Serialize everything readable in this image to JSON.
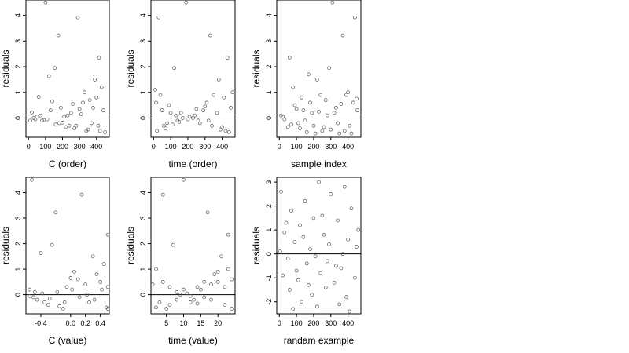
{
  "chart_data": [
    {
      "type": "scatter",
      "xlabel": "C (order)",
      "ylabel": "residuals",
      "xlim": [
        -15,
        475
      ],
      "ylim": [
        -0.75,
        4.6
      ],
      "xticks": [
        0,
        100,
        200,
        300,
        400
      ],
      "yticks": [
        0,
        1,
        2,
        3,
        4
      ],
      "hline": 0,
      "points": [
        [
          100,
          4.5
        ],
        [
          290,
          3.92
        ],
        [
          175,
          3.22
        ],
        [
          415,
          2.35
        ],
        [
          120,
          1.63
        ],
        [
          155,
          1.95
        ],
        [
          60,
          0.82
        ],
        [
          20,
          0.22
        ],
        [
          40,
          -0.05
        ],
        [
          80,
          -0.1
        ],
        [
          140,
          0.65
        ],
        [
          200,
          -0.18
        ],
        [
          240,
          -0.3
        ],
        [
          260,
          0.55
        ],
        [
          300,
          0.35
        ],
        [
          330,
          1.0
        ],
        [
          360,
          0.7
        ],
        [
          390,
          1.5
        ],
        [
          430,
          1.2
        ],
        [
          450,
          -0.55
        ],
        [
          10,
          -0.1
        ],
        [
          50,
          0.05
        ],
        [
          110,
          -0.05
        ],
        [
          180,
          -0.2
        ],
        [
          220,
          -0.35
        ],
        [
          270,
          -0.4
        ],
        [
          310,
          0.15
        ],
        [
          350,
          -0.45
        ],
        [
          380,
          0.4
        ],
        [
          420,
          -0.5
        ],
        [
          30,
          0.0
        ],
        [
          70,
          0.1
        ],
        [
          130,
          0.3
        ],
        [
          160,
          -0.25
        ],
        [
          210,
          0.05
        ],
        [
          250,
          0.2
        ],
        [
          280,
          -0.3
        ],
        [
          320,
          0.6
        ],
        [
          370,
          -0.2
        ],
        [
          400,
          0.8
        ],
        [
          440,
          0.3
        ],
        [
          90,
          -0.08
        ],
        [
          190,
          0.4
        ],
        [
          230,
          0.1
        ],
        [
          340,
          -0.5
        ],
        [
          410,
          -0.3
        ]
      ]
    },
    {
      "type": "scatter",
      "xlabel": "time (order)",
      "ylabel": "residuals",
      "xlim": [
        -15,
        475
      ],
      "ylim": [
        -0.75,
        4.6
      ],
      "xticks": [
        0,
        100,
        200,
        300,
        400
      ],
      "yticks": [
        0,
        1,
        2,
        3,
        4
      ],
      "hline": 0,
      "points": [
        [
          190,
          4.5
        ],
        [
          30,
          3.92
        ],
        [
          330,
          3.22
        ],
        [
          430,
          2.35
        ],
        [
          120,
          1.95
        ],
        [
          380,
          1.5
        ],
        [
          10,
          1.1
        ],
        [
          40,
          0.9
        ],
        [
          60,
          -0.3
        ],
        [
          80,
          -0.2
        ],
        [
          100,
          0.2
        ],
        [
          140,
          -0.1
        ],
        [
          170,
          0.0
        ],
        [
          210,
          0.05
        ],
        [
          240,
          0.1
        ],
        [
          260,
          -0.1
        ],
        [
          290,
          0.3
        ],
        [
          310,
          0.6
        ],
        [
          350,
          0.9
        ],
        [
          400,
          -0.35
        ],
        [
          420,
          -0.5
        ],
        [
          450,
          0.4
        ],
        [
          20,
          -0.5
        ],
        [
          50,
          0.3
        ],
        [
          90,
          0.5
        ],
        [
          130,
          0.1
        ],
        [
          160,
          0.2
        ],
        [
          200,
          -0.05
        ],
        [
          230,
          0.0
        ],
        [
          270,
          -0.2
        ],
        [
          300,
          0.45
        ],
        [
          340,
          -0.3
        ],
        [
          370,
          0.2
        ],
        [
          410,
          0.8
        ],
        [
          440,
          -0.55
        ],
        [
          15,
          0.6
        ],
        [
          70,
          -0.4
        ],
        [
          110,
          -0.25
        ],
        [
          150,
          -0.15
        ],
        [
          250,
          0.35
        ],
        [
          320,
          -0.1
        ],
        [
          390,
          -0.45
        ],
        [
          460,
          1.0
        ]
      ]
    },
    {
      "type": "scatter",
      "xlabel": "sample index",
      "ylabel": "residuals",
      "xlim": [
        -15,
        475
      ],
      "ylim": [
        -0.75,
        4.6
      ],
      "xticks": [
        0,
        100,
        200,
        300,
        400
      ],
      "yticks": [
        0,
        1,
        2,
        3,
        4
      ],
      "hline": 0,
      "points": [
        [
          310,
          4.5
        ],
        [
          440,
          3.92
        ],
        [
          370,
          3.22
        ],
        [
          60,
          2.35
        ],
        [
          290,
          1.95
        ],
        [
          170,
          1.7
        ],
        [
          220,
          1.5
        ],
        [
          80,
          1.2
        ],
        [
          10,
          0.1
        ],
        [
          30,
          -0.05
        ],
        [
          50,
          -0.35
        ],
        [
          70,
          -0.25
        ],
        [
          100,
          0.35
        ],
        [
          120,
          -0.4
        ],
        [
          140,
          0.3
        ],
        [
          160,
          -0.55
        ],
        [
          180,
          0.6
        ],
        [
          200,
          -0.3
        ],
        [
          230,
          0.25
        ],
        [
          250,
          -0.5
        ],
        [
          270,
          0.7
        ],
        [
          300,
          -0.45
        ],
        [
          330,
          0.4
        ],
        [
          350,
          -0.6
        ],
        [
          390,
          0.9
        ],
        [
          410,
          -0.3
        ],
        [
          430,
          0.6
        ],
        [
          455,
          0.3
        ],
        [
          20,
          0.05
        ],
        [
          90,
          0.5
        ],
        [
          110,
          -0.2
        ],
        [
          130,
          0.8
        ],
        [
          150,
          -0.1
        ],
        [
          190,
          0.2
        ],
        [
          210,
          -0.6
        ],
        [
          240,
          0.9
        ],
        [
          260,
          -0.35
        ],
        [
          280,
          0.1
        ],
        [
          320,
          0.2
        ],
        [
          340,
          -0.2
        ],
        [
          360,
          0.55
        ],
        [
          380,
          -0.5
        ],
        [
          400,
          1.0
        ],
        [
          420,
          -0.6
        ],
        [
          450,
          0.75
        ]
      ]
    },
    {
      "type": "scatter",
      "xlabel": "C (value)",
      "ylabel": "residuals",
      "xticklabels": [
        "-0.4",
        "0.0",
        "0.2",
        "0.4"
      ],
      "xlim": [
        -0.6,
        0.52
      ],
      "ylim": [
        -0.75,
        4.6
      ],
      "xticks": [
        -0.4,
        0.0,
        0.2,
        0.4
      ],
      "yticks": [
        0,
        1,
        2,
        3,
        4
      ],
      "hline": 0,
      "points": [
        [
          -0.52,
          4.5
        ],
        [
          0.15,
          3.92
        ],
        [
          -0.2,
          3.22
        ],
        [
          0.5,
          2.35
        ],
        [
          -0.4,
          1.63
        ],
        [
          -0.25,
          1.95
        ],
        [
          0.0,
          0.65
        ],
        [
          -0.55,
          0.2
        ],
        [
          -0.5,
          -0.1
        ],
        [
          -0.45,
          -0.2
        ],
        [
          -0.35,
          -0.3
        ],
        [
          -0.3,
          -0.4
        ],
        [
          -0.15,
          -0.45
        ],
        [
          -0.1,
          -0.55
        ],
        [
          -0.05,
          0.3
        ],
        [
          0.05,
          0.9
        ],
        [
          0.1,
          0.6
        ],
        [
          0.2,
          0.4
        ],
        [
          0.25,
          -0.3
        ],
        [
          0.3,
          1.5
        ],
        [
          0.35,
          0.8
        ],
        [
          0.4,
          0.5
        ],
        [
          0.45,
          1.2
        ],
        [
          0.48,
          -0.5
        ],
        [
          0.5,
          0.3
        ],
        [
          -0.55,
          -0.05
        ],
        [
          -0.48,
          0.1
        ],
        [
          -0.38,
          0.05
        ],
        [
          -0.28,
          -0.15
        ],
        [
          -0.18,
          0.1
        ],
        [
          -0.08,
          -0.3
        ],
        [
          0.02,
          0.2
        ],
        [
          0.12,
          -0.1
        ],
        [
          0.22,
          0.0
        ],
        [
          0.32,
          -0.2
        ],
        [
          0.42,
          0.2
        ],
        [
          0.5,
          -0.55
        ]
      ]
    },
    {
      "type": "scatter",
      "xlabel": "time (value)",
      "ylabel": "residuals",
      "xlim": [
        0.5,
        25
      ],
      "ylim": [
        -0.75,
        4.6
      ],
      "xticks": [
        5,
        10,
        15,
        20
      ],
      "yticks": [
        0,
        1,
        2,
        3,
        4
      ],
      "hline": 0,
      "points": [
        [
          10,
          4.5
        ],
        [
          4,
          3.92
        ],
        [
          17,
          3.22
        ],
        [
          23,
          2.35
        ],
        [
          7,
          1.95
        ],
        [
          21,
          1.5
        ],
        [
          2,
          1.0
        ],
        [
          3,
          -0.3
        ],
        [
          5,
          -0.55
        ],
        [
          6,
          -0.4
        ],
        [
          8,
          -0.2
        ],
        [
          9,
          0.0
        ],
        [
          11,
          0.05
        ],
        [
          12,
          -0.05
        ],
        [
          13,
          -0.2
        ],
        [
          14,
          -0.35
        ],
        [
          15,
          0.2
        ],
        [
          16,
          -0.1
        ],
        [
          18,
          0.4
        ],
        [
          19,
          0.8
        ],
        [
          20,
          0.5
        ],
        [
          22,
          -0.4
        ],
        [
          24,
          -0.55
        ],
        [
          24,
          0.6
        ],
        [
          1,
          0.4
        ],
        [
          2,
          -0.5
        ],
        [
          4,
          0.5
        ],
        [
          6,
          0.3
        ],
        [
          8,
          0.1
        ],
        [
          10,
          0.2
        ],
        [
          12,
          -0.3
        ],
        [
          14,
          0.3
        ],
        [
          16,
          0.5
        ],
        [
          18,
          -0.2
        ],
        [
          20,
          0.9
        ],
        [
          22,
          0.3
        ],
        [
          23,
          1.0
        ]
      ]
    },
    {
      "type": "scatter",
      "xlabel": "randam example",
      "ylabel": "residuals",
      "xlim": [
        -15,
        475
      ],
      "ylim": [
        -2.5,
        3.2
      ],
      "xticks": [
        0,
        100,
        200,
        300,
        400
      ],
      "yticks": [
        -2,
        -1,
        0,
        1,
        2,
        3
      ],
      "hline": 0,
      "points": [
        [
          230,
          3.0
        ],
        [
          10,
          2.6
        ],
        [
          380,
          2.8
        ],
        [
          150,
          2.2
        ],
        [
          300,
          2.5
        ],
        [
          70,
          1.8
        ],
        [
          420,
          1.9
        ],
        [
          200,
          1.5
        ],
        [
          120,
          1.2
        ],
        [
          340,
          1.4
        ],
        [
          30,
          0.9
        ],
        [
          260,
          0.8
        ],
        [
          400,
          0.6
        ],
        [
          90,
          0.5
        ],
        [
          180,
          0.2
        ],
        [
          450,
          0.3
        ],
        [
          50,
          -0.2
        ],
        [
          160,
          -0.4
        ],
        [
          280,
          -0.3
        ],
        [
          360,
          -0.6
        ],
        [
          20,
          -0.9
        ],
        [
          110,
          -1.1
        ],
        [
          240,
          -0.8
        ],
        [
          320,
          -1.2
        ],
        [
          440,
          -1.0
        ],
        [
          60,
          -1.5
        ],
        [
          190,
          -1.7
        ],
        [
          270,
          -1.4
        ],
        [
          390,
          -1.8
        ],
        [
          130,
          -2.0
        ],
        [
          350,
          -2.1
        ],
        [
          80,
          -2.3
        ],
        [
          220,
          -2.2
        ],
        [
          410,
          -2.4
        ],
        [
          5,
          0.1
        ],
        [
          140,
          0.7
        ],
        [
          210,
          -0.1
        ],
        [
          290,
          0.4
        ],
        [
          330,
          -0.5
        ],
        [
          460,
          1.0
        ],
        [
          100,
          -0.7
        ],
        [
          250,
          1.6
        ],
        [
          370,
          0.0
        ],
        [
          40,
          1.3
        ],
        [
          170,
          -1.3
        ]
      ]
    }
  ]
}
